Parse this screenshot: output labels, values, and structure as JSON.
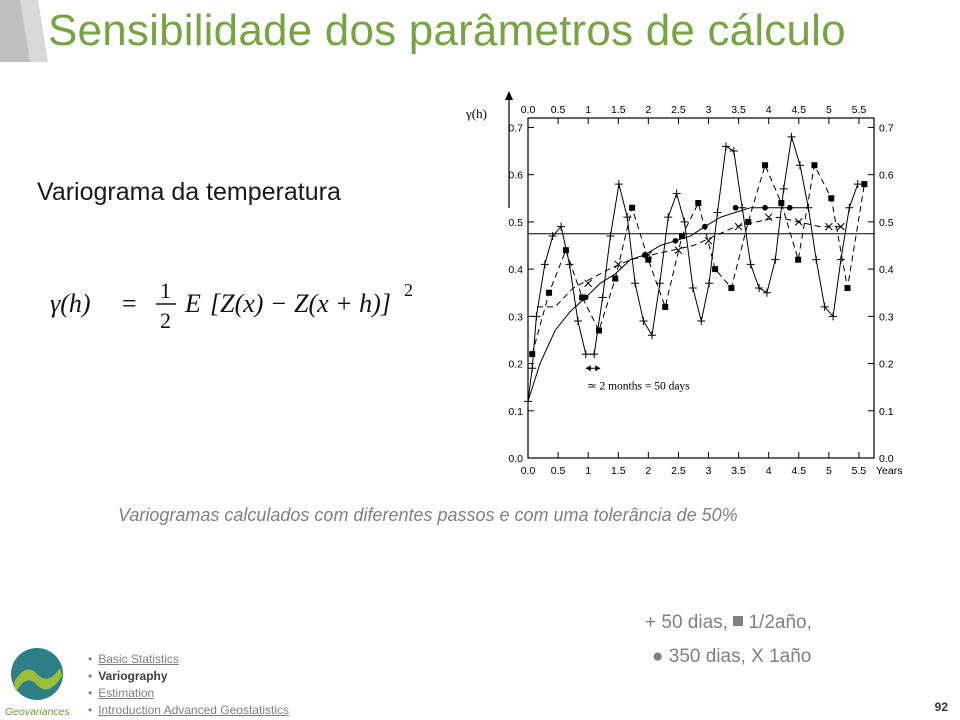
{
  "slide": {
    "title": "Sensibilidade dos parâmetros de cálculo",
    "subtitle": "Variograma da temperatura",
    "caption": "Variogramas calculados com diferentes passos e com uma tolerância de 50%",
    "legend_line1_a": "+ 50 dias, ",
    "legend_line1_b": " 1/2año,",
    "legend_line2": "● 350 dias, X 1año",
    "page_number": "92",
    "accent_color": "#77a342",
    "logo_text": "Geovariances"
  },
  "formula": {
    "lhs": "γ(h)",
    "eq": "=",
    "num": "1",
    "den": "2",
    "expectation": "E",
    "bracket": "[Z(x) − Z(x + h)]",
    "power": "2"
  },
  "nav": {
    "items": [
      {
        "label": "Basic Statistics",
        "active": false
      },
      {
        "label": "Variography",
        "active": true
      },
      {
        "label": "Estimation",
        "active": false
      },
      {
        "label": "Introduction Advanced Geostatistics",
        "active": false
      }
    ]
  },
  "chart_data": {
    "type": "line",
    "ylabel": "γ(h)",
    "xlabel": "Years",
    "annotation": "≃ 2 months = 50 days",
    "xlim": [
      0,
      5.75
    ],
    "ylim": [
      0,
      0.72
    ],
    "x_ticks": [
      "0.0",
      "0.5",
      "1",
      "1.5",
      "2",
      "2.5",
      "3",
      "3.5",
      "4",
      "4.5",
      "5",
      "5.5"
    ],
    "x_tick_values": [
      0,
      0.5,
      1,
      1.5,
      2,
      2.5,
      3,
      3.5,
      4,
      4.5,
      5,
      5.5
    ],
    "y_ticks": [
      "0.0",
      "0.1",
      "0.2",
      "0.3",
      "0.4",
      "0.5",
      "0.6",
      "0.7"
    ],
    "y_tick_values": [
      0,
      0.1,
      0.2,
      0.3,
      0.4,
      0.5,
      0.6,
      0.7
    ],
    "sill": 0.475,
    "grid": false,
    "series": [
      {
        "name": "50 dias",
        "marker": "plus",
        "dash": "solid",
        "x": [
          0.0,
          0.07,
          0.14,
          0.28,
          0.41,
          0.55,
          0.69,
          0.83,
          0.96,
          1.1,
          1.24,
          1.37,
          1.51,
          1.65,
          1.78,
          1.92,
          2.06,
          2.19,
          2.33,
          2.47,
          2.6,
          2.74,
          2.88,
          3.01,
          3.15,
          3.29,
          3.42,
          3.56,
          3.7,
          3.84,
          3.97,
          4.11,
          4.25,
          4.38,
          4.52,
          4.66,
          4.79,
          4.93,
          5.07,
          5.2,
          5.34,
          5.48
        ],
        "y": [
          0.12,
          0.19,
          0.3,
          0.41,
          0.47,
          0.49,
          0.41,
          0.29,
          0.22,
          0.22,
          0.34,
          0.47,
          0.58,
          0.51,
          0.37,
          0.29,
          0.26,
          0.37,
          0.51,
          0.56,
          0.5,
          0.36,
          0.29,
          0.37,
          0.52,
          0.66,
          0.65,
          0.53,
          0.41,
          0.36,
          0.35,
          0.42,
          0.57,
          0.68,
          0.62,
          0.53,
          0.42,
          0.32,
          0.3,
          0.42,
          0.53,
          0.58
        ]
      },
      {
        "name": "1/2año",
        "marker": "square",
        "dash": "dashed",
        "x": [
          0.07,
          0.35,
          0.63,
          0.9,
          1.18,
          1.45,
          1.73,
          2.0,
          2.28,
          2.56,
          2.83,
          3.11,
          3.38,
          3.66,
          3.94,
          4.21,
          4.49,
          4.76,
          5.04,
          5.31,
          5.59
        ],
        "y": [
          0.22,
          0.35,
          0.44,
          0.34,
          0.27,
          0.38,
          0.53,
          0.42,
          0.32,
          0.47,
          0.54,
          0.4,
          0.36,
          0.5,
          0.62,
          0.54,
          0.42,
          0.62,
          0.55,
          0.36,
          0.58
        ]
      },
      {
        "name": "350 dias",
        "marker": "dot",
        "dash": "solid",
        "x": [
          0.0,
          0.2,
          0.45,
          0.7,
          0.96,
          1.2,
          1.45,
          1.7,
          1.94,
          2.2,
          2.45,
          2.7,
          2.94,
          3.2,
          3.45,
          3.7,
          3.94,
          4.2,
          4.35,
          4.6
        ],
        "y": [
          0.12,
          0.2,
          0.27,
          0.31,
          0.34,
          0.37,
          0.39,
          0.42,
          0.43,
          0.45,
          0.46,
          0.47,
          0.49,
          0.51,
          0.52,
          0.53,
          0.53,
          0.53,
          0.53,
          0.53
        ],
        "marker_x": [
          0.96,
          1.45,
          1.94,
          2.45,
          2.94,
          3.45,
          3.94,
          4.35
        ],
        "marker_y": [
          0.34,
          0.38,
          0.43,
          0.46,
          0.49,
          0.53,
          0.53,
          0.53
        ]
      },
      {
        "name": "1año",
        "marker": "cross",
        "dash": "dashed",
        "x": [
          0.15,
          0.45,
          0.75,
          1.05,
          1.35,
          1.7,
          2.05,
          2.4,
          2.75,
          3.1,
          3.45,
          3.8,
          4.15,
          4.5,
          4.85,
          5.2
        ],
        "y": [
          0.32,
          0.32,
          0.36,
          0.38,
          0.4,
          0.42,
          0.43,
          0.44,
          0.45,
          0.47,
          0.49,
          0.5,
          0.51,
          0.5,
          0.49,
          0.49
        ],
        "marker_x": [
          1.0,
          1.5,
          2.0,
          2.5,
          3.0,
          3.5,
          4.0,
          4.5,
          5.0,
          5.2
        ],
        "marker_y": [
          0.37,
          0.41,
          0.43,
          0.44,
          0.46,
          0.49,
          0.51,
          0.5,
          0.49,
          0.49
        ]
      }
    ]
  }
}
